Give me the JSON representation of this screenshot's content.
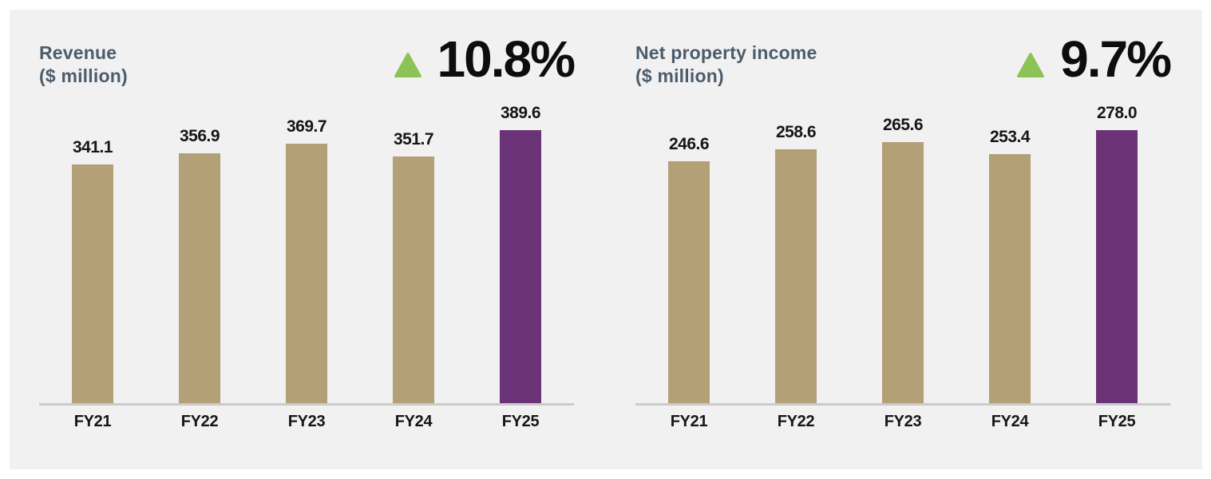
{
  "colors": {
    "panel_bg": "#f1f1f1",
    "bar_default": "#b3a077",
    "bar_highlight": "#6b3377",
    "triangle_up": "#8dc356",
    "title_text": "#4b5c6c",
    "value_text": "#161616",
    "axis_line": "#cbcbcb"
  },
  "chart_data": [
    {
      "type": "bar",
      "title": "Revenue",
      "subtitle": "($ million)",
      "change_label": "10.8%",
      "change_direction": "up",
      "categories": [
        "FY21",
        "FY22",
        "FY23",
        "FY24",
        "FY25"
      ],
      "values": [
        341.1,
        356.9,
        369.7,
        351.7,
        389.6
      ],
      "data_labels": [
        "341.1",
        "356.9",
        "369.7",
        "351.7",
        "389.6"
      ],
      "highlight_index": 4,
      "ylim": [
        0,
        389.6
      ],
      "grid": false,
      "legend": "none"
    },
    {
      "type": "bar",
      "title": "Net property income",
      "subtitle": "($ million)",
      "change_label": "9.7%",
      "change_direction": "up",
      "categories": [
        "FY21",
        "FY22",
        "FY23",
        "FY24",
        "FY25"
      ],
      "values": [
        246.6,
        258.6,
        265.6,
        253.4,
        278.0
      ],
      "data_labels": [
        "246.6",
        "258.6",
        "265.6",
        "253.4",
        "278.0"
      ],
      "highlight_index": 4,
      "ylim": [
        0,
        278.0
      ],
      "grid": false,
      "legend": "none"
    }
  ]
}
